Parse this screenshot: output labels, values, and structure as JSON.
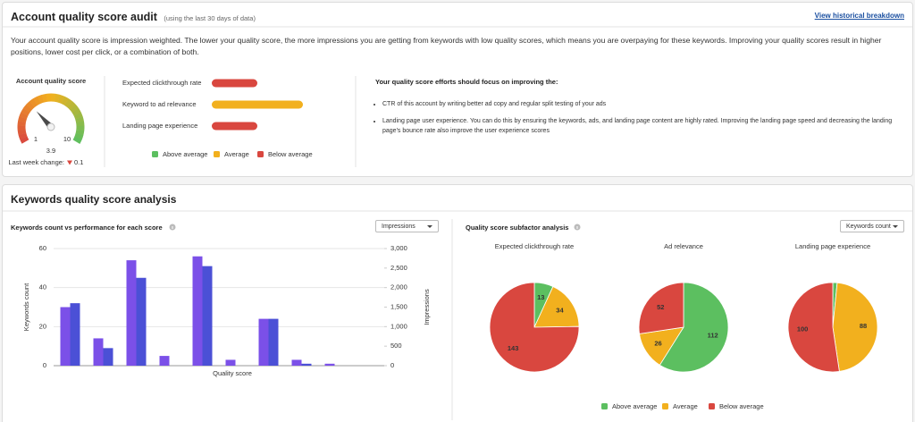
{
  "header": {
    "title": "Account quality score audit",
    "subtitle": "(using the last 30 days of data)",
    "link": "View historical breakdown",
    "description": "Your account quality score is impression weighted. The lower your quality score, the more impressions you are getting from keywords with low quality scores, which means you are overpaying for these keywords. Improving your quality scores result in higher positions, lower cost per click, or a combination of both."
  },
  "gauge": {
    "title": "Account quality score",
    "value": 3.9,
    "min": 1,
    "max": 10,
    "change_label": "Last week change:",
    "change": 0.1,
    "change_direction": "down"
  },
  "ratings": {
    "levels": [
      {
        "name": "Above average",
        "color": "#5cbf60"
      },
      {
        "name": "Average",
        "color": "#f2b01e"
      },
      {
        "name": "Below average",
        "color": "#d9473f"
      }
    ],
    "factors": [
      {
        "label": "Expected clickthrough rate",
        "level": 2
      },
      {
        "label": "Keyword to ad relevance",
        "level": 1
      },
      {
        "label": "Landing page experience",
        "level": 2
      }
    ]
  },
  "focus": {
    "title": "Your quality score efforts should focus on improving the:",
    "items": [
      "CTR of this account by writing better ad copy and regular split testing of your ads",
      "Landing page user experience. You can do this by ensuring the keywords, ads, and landing page content are highly rated. Improving the landing page speed and decreasing the landing page's bounce rate also improve the user experience scores"
    ]
  },
  "section_title": "Keywords quality score analysis",
  "chart_data": [
    {
      "type": "bar",
      "title": "Keywords count vs performance for each score",
      "dropdown": "Impressions",
      "categories": [
        null,
        null,
        null,
        null,
        null,
        null,
        null,
        null,
        null,
        null
      ],
      "xlabel": "Quality score",
      "series": [
        {
          "name": "Keywords count",
          "color": "#7b50e8",
          "values": [
            30,
            14,
            54,
            5,
            56,
            3,
            24,
            3,
            1,
            0
          ]
        },
        {
          "name": "Impressions",
          "color": "#4b50d6",
          "axis": "y2",
          "values": [
            1600,
            450,
            2250,
            0,
            2550,
            0,
            1200,
            50,
            0,
            0
          ]
        }
      ],
      "ylim": [
        0,
        60
      ],
      "yticks": [
        0,
        20,
        40,
        60
      ],
      "y2lim": [
        0,
        3000
      ],
      "y2ticks": [
        0,
        500,
        {
          "value": 1000,
          "label": "1,000"
        },
        {
          "value": 1500,
          "label": "1,500"
        },
        {
          "value": 2000,
          "label": "2,000"
        },
        {
          "value": 2500,
          "label": "2,500"
        },
        {
          "value": 3000,
          "label": "3,000"
        }
      ],
      "grid": true
    },
    {
      "type": "pie",
      "title": "Quality score subfactor analysis",
      "dropdown": "Keywords count",
      "categories": [
        "Above average",
        "Average",
        "Below average"
      ],
      "colors": [
        "#5cbf60",
        "#f2b01e",
        "#d9473f"
      ],
      "pies": [
        {
          "title": "Expected clickthrough rate",
          "values": [
            13,
            34,
            143
          ]
        },
        {
          "title": "Ad relevance",
          "values": [
            112,
            26,
            52
          ]
        },
        {
          "title": "Landing page experience",
          "values": [
            3,
            88,
            100
          ]
        }
      ]
    }
  ]
}
